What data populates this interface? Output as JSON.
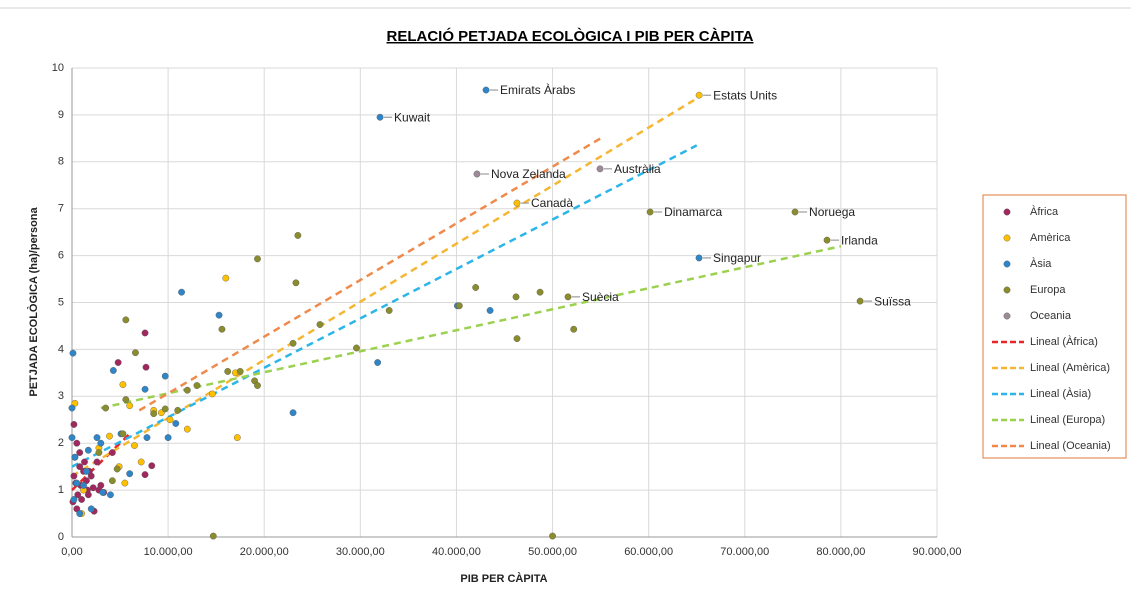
{
  "chart_data": {
    "type": "scatter",
    "title": "RELACIÓ PETJADA ECOLÒGICA I PIB PER CÀPITA",
    "x_label": "PIB PER CÀPITA",
    "y_label": "PETJADA ECOLÒGICA (ha)/persona",
    "xlim": [
      0,
      90000
    ],
    "ylim": [
      0,
      10
    ],
    "xticks": [
      {
        "value": 0,
        "label": "0,00"
      },
      {
        "value": 10000,
        "label": "10.000,00"
      },
      {
        "value": 20000,
        "label": "20.000,00"
      },
      {
        "value": 30000,
        "label": "30.000,00"
      },
      {
        "value": 40000,
        "label": "40.000,00"
      },
      {
        "value": 50000,
        "label": "50.000,00"
      },
      {
        "value": 60000,
        "label": "60.000,00"
      },
      {
        "value": 70000,
        "label": "70.000,00"
      },
      {
        "value": 80000,
        "label": "80.000,00"
      },
      {
        "value": 90000,
        "label": "90.000,00"
      }
    ],
    "yticks": [
      0,
      1,
      2,
      3,
      4,
      5,
      6,
      7,
      8,
      9,
      10
    ],
    "grid": true,
    "legend": "right",
    "series": [
      {
        "name": "Àfrica",
        "color": "#a0285f",
        "x": [
          7600,
          7700,
          4800,
          8300,
          7600,
          200,
          500,
          300,
          800,
          1200,
          1500,
          2000,
          2200,
          2600,
          3000,
          1000,
          600,
          400,
          1700,
          2300,
          800,
          1300,
          100,
          1800,
          3300,
          2800,
          900,
          500,
          1600,
          200,
          4200
        ],
        "values": [
          4.35,
          3.62,
          3.72,
          1.52,
          1.33,
          2.4,
          2.0,
          1.7,
          1.5,
          1.4,
          1.2,
          1.3,
          1.05,
          1.6,
          1.1,
          0.8,
          0.9,
          1.15,
          0.9,
          0.55,
          1.8,
          1.6,
          0.75,
          1.4,
          0.95,
          1.0,
          1.1,
          0.6,
          1.0,
          1.3,
          1.8
        ],
        "labels": [
          null,
          null,
          null,
          null,
          null,
          null,
          null,
          null,
          null,
          null,
          null,
          null,
          null,
          null,
          null,
          null,
          null,
          null,
          null,
          null,
          null,
          null,
          null,
          null,
          null,
          null,
          null,
          null,
          null,
          null,
          null
        ]
      },
      {
        "name": "Amèrica",
        "color": "#ffc000",
        "x": [
          65250,
          46300,
          16000,
          5300,
          17200,
          14600,
          12000,
          6500,
          5500,
          3900,
          4900,
          2800,
          8500,
          9300,
          10200,
          7200,
          300,
          1200,
          17000,
          6000,
          1000
        ],
        "values": [
          9.42,
          7.12,
          5.52,
          3.25,
          2.12,
          3.05,
          2.3,
          1.95,
          1.15,
          2.15,
          1.5,
          1.9,
          2.7,
          2.65,
          2.5,
          1.6,
          2.85,
          1.0,
          3.5,
          2.8,
          0.5
        ],
        "labels": [
          "Estats Units",
          "Canadà",
          null,
          null,
          null,
          null,
          null,
          null,
          null,
          null,
          null,
          null,
          null,
          null,
          null,
          null,
          null,
          null,
          null,
          null,
          null
        ]
      },
      {
        "name": "Àsia",
        "color": "#2e86c8",
        "x": [
          43080,
          32050,
          65240,
          11400,
          15300,
          40100,
          43500,
          31800,
          23000,
          4300,
          7600,
          9700,
          10000,
          7800,
          5100,
          3000,
          100,
          0,
          0,
          300,
          500,
          1200,
          2000,
          3200,
          4000,
          1700,
          2600,
          6000,
          800,
          1500,
          10800,
          200
        ],
        "values": [
          9.53,
          8.95,
          5.95,
          5.22,
          4.73,
          4.93,
          4.83,
          3.72,
          2.65,
          3.55,
          3.15,
          3.43,
          2.12,
          2.12,
          2.2,
          2.0,
          3.92,
          2.75,
          2.12,
          1.7,
          1.15,
          1.1,
          0.6,
          0.95,
          0.9,
          1.85,
          2.12,
          1.35,
          0.5,
          1.4,
          2.42,
          0.8
        ],
        "labels": [
          "Emirats Àrabs",
          "Kuwait",
          "Singapur",
          null,
          null,
          null,
          null,
          null,
          null,
          null,
          null,
          null,
          null,
          null,
          null,
          null,
          null,
          null,
          null,
          null,
          null,
          null,
          null,
          null,
          null,
          null,
          null,
          null,
          null,
          null,
          null,
          null
        ]
      },
      {
        "name": "Europa",
        "color": "#8b8c2c",
        "x": [
          60150,
          75230,
          78560,
          51610,
          82000,
          23500,
          19300,
          23300,
          42000,
          48700,
          46200,
          33000,
          25800,
          15600,
          52200,
          46300,
          40300,
          23000,
          29600,
          19000,
          19300,
          16200,
          17500,
          5600,
          6600,
          9700,
          12000,
          13000,
          8500,
          5600,
          3500,
          4700,
          4200,
          14700,
          50000,
          2800,
          11000,
          5300
        ],
        "values": [
          6.93,
          6.93,
          6.33,
          5.12,
          5.03,
          6.43,
          5.93,
          5.42,
          5.32,
          5.22,
          5.12,
          4.83,
          4.53,
          4.43,
          4.43,
          4.23,
          4.93,
          4.13,
          4.03,
          3.33,
          3.23,
          3.53,
          3.53,
          4.63,
          3.93,
          2.73,
          3.13,
          3.23,
          2.63,
          2.93,
          2.75,
          1.45,
          1.2,
          0.02,
          0.02,
          1.8,
          2.7,
          2.2
        ],
        "labels": [
          "Dinamarca",
          "Noruega",
          "Irlanda",
          "Suècia",
          "Suïssa",
          null,
          null,
          null,
          null,
          null,
          null,
          null,
          null,
          null,
          null,
          null,
          null,
          null,
          null,
          null,
          null,
          null,
          null,
          null,
          null,
          null,
          null,
          null,
          null,
          null,
          null,
          null,
          null,
          null,
          null,
          null,
          null,
          null
        ]
      },
      {
        "name": "Oceania",
        "color": "#9c8a96",
        "x": [
          42140,
          54940
        ],
        "values": [
          7.74,
          7.85
        ],
        "labels": [
          "Nova Zelanda",
          "Austràlia"
        ]
      }
    ],
    "trendlines": [
      {
        "name": "Lineal (Àfrica)",
        "color": "#e8262a",
        "x": [
          0,
          6000
        ],
        "values": [
          1.0,
          2.2
        ]
      },
      {
        "name": "Lineal (Amèrica)",
        "color": "#f5b733",
        "x": [
          0,
          65000
        ],
        "values": [
          1.3,
          9.35
        ]
      },
      {
        "name": "Lineal (Àsia)",
        "color": "#2bb5e8",
        "x": [
          0,
          65000
        ],
        "values": [
          1.5,
          8.35
        ]
      },
      {
        "name": "Lineal (Europa)",
        "color": "#9bd14f",
        "x": [
          3000,
          80000
        ],
        "values": [
          2.75,
          6.2
        ]
      },
      {
        "name": "Lineal (Oceania)",
        "color": "#ef8a4c",
        "x": [
          7000,
          55000
        ],
        "values": [
          2.7,
          8.5
        ]
      }
    ]
  }
}
